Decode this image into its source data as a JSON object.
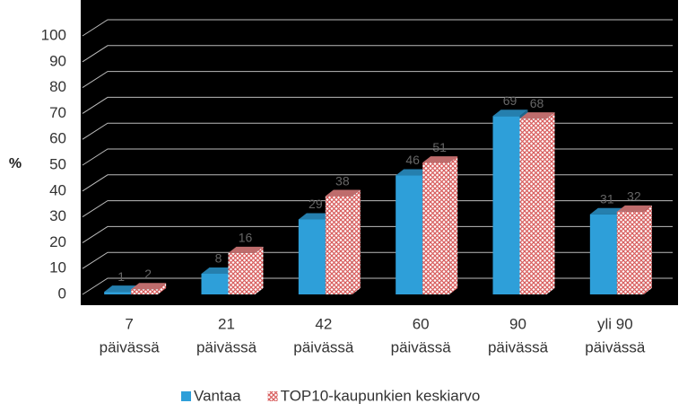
{
  "chart_data": {
    "type": "bar3d",
    "y_label": "%",
    "categories": [
      [
        "7",
        "päivässä"
      ],
      [
        "21",
        "päivässä"
      ],
      [
        "42",
        "päivässä"
      ],
      [
        "60",
        "päivässä"
      ],
      [
        "90",
        "päivässä"
      ],
      [
        "yli 90",
        "päivässä"
      ]
    ],
    "series": [
      {
        "name": "Vantaa",
        "color": "#2e9fd9",
        "values": [
          1,
          8,
          29,
          46,
          69,
          31
        ]
      },
      {
        "name": "TOP10-kaupunkien keskiarvo",
        "color": "#e07f7f",
        "values": [
          2,
          16,
          38,
          51,
          68,
          32
        ]
      }
    ],
    "ylim": [
      0,
      100
    ],
    "yticks": [
      0,
      10,
      20,
      30,
      40,
      50,
      60,
      70,
      80,
      90,
      100
    ],
    "grid": true,
    "legend": "bottom"
  }
}
